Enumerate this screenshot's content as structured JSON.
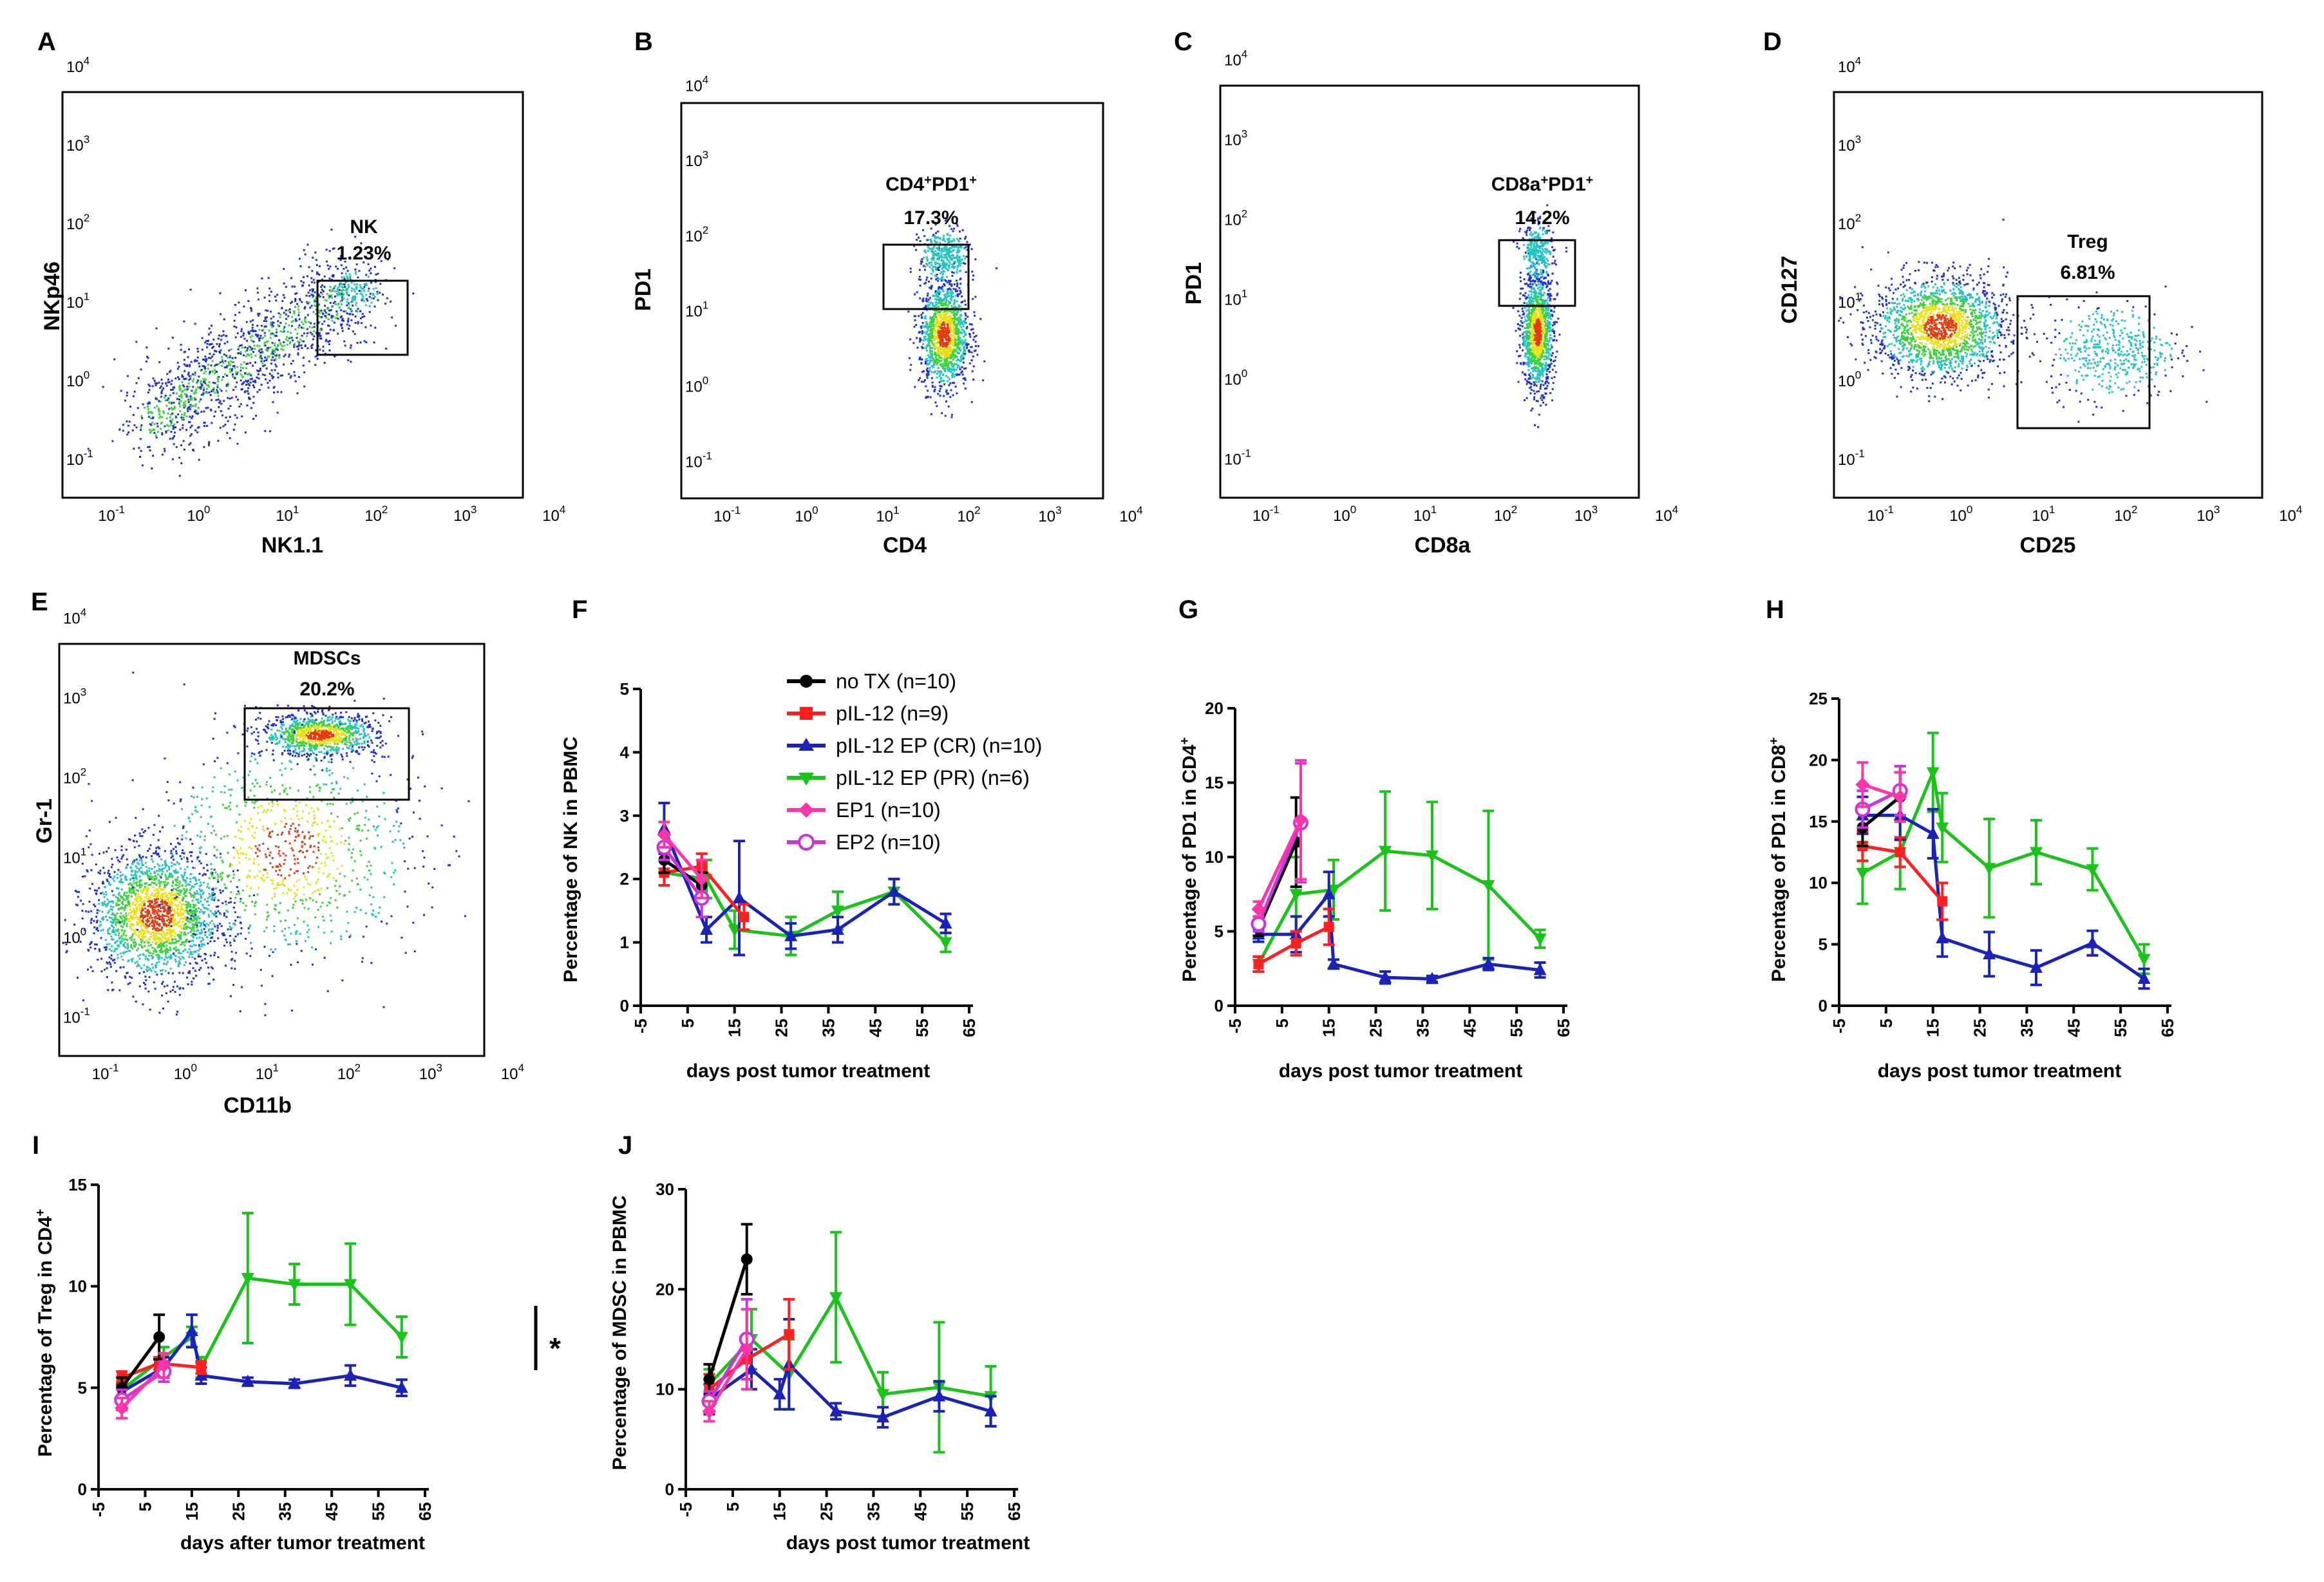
{
  "figure": {
    "panel_letters": [
      "A",
      "B",
      "C",
      "D",
      "E",
      "F",
      "G",
      "H",
      "I",
      "J"
    ],
    "tick_minor_label": "10",
    "colors": {
      "no_tx": "#000000",
      "pil12": "#ff1f1f",
      "cr": "#1b22b8",
      "pr": "#17c417",
      "ep1": "#ff33aa",
      "ep2": "#cc33dd",
      "dot_blue": "#1f2fd8",
      "dot_cyan": "#20c4c0",
      "dot_green": "#39d23a",
      "dot_yellow": "#e8e015",
      "dot_red": "#e33a10"
    }
  },
  "chart_data": [
    {
      "panel": "A",
      "type": "scatter",
      "xlabel": "NK1.1",
      "ylabel": "NKp46",
      "x_exponents": [
        "-1",
        "0",
        "1",
        "2",
        "3",
        "4"
      ],
      "y_exponents": [
        "-1",
        "0",
        "1",
        "2",
        "3",
        "4"
      ],
      "gate": {
        "label": "NK",
        "value": "1.23%",
        "x_range": [
          20,
          300
        ],
        "y_range": [
          4,
          40
        ]
      },
      "populations": [
        {
          "cx": -0.5,
          "cy": -0.5,
          "sx": 0.35,
          "sy": 0.35,
          "n": 1400,
          "shape": "diag"
        },
        {
          "cx": 1.8,
          "cy": 1.15,
          "sx": 0.15,
          "sy": 0.15,
          "n": 120
        }
      ]
    },
    {
      "panel": "B",
      "type": "scatter",
      "xlabel": "CD4",
      "ylabel": "PD1",
      "x_exponents": [
        "-1",
        "0",
        "1",
        "2",
        "3",
        "4"
      ],
      "y_exponents": [
        "-1",
        "0",
        "1",
        "2",
        "3",
        "4"
      ],
      "gate": {
        "label": "CD4",
        "label_sup": "+",
        "label2": "PD1",
        "label2_sup": "+",
        "value": "17.3%",
        "x_range": [
          20,
          150
        ],
        "y_range": [
          20,
          130
        ]
      },
      "populations": [
        {
          "cx": 1.75,
          "cy": 0.7,
          "sx": 0.15,
          "sy": 0.35,
          "n": 1300
        },
        {
          "cx": 1.75,
          "cy": 1.75,
          "sx": 0.15,
          "sy": 0.18,
          "n": 350
        }
      ]
    },
    {
      "panel": "C",
      "type": "scatter",
      "xlabel": "CD8a",
      "ylabel": "PD1",
      "x_exponents": [
        "-1",
        "0",
        "1",
        "2",
        "3",
        "4"
      ],
      "y_exponents": [
        "-1",
        "0",
        "1",
        "2",
        "3",
        "4"
      ],
      "gate": {
        "label": "CD8a",
        "label_sup": "+",
        "label2": "PD1",
        "label2_sup": "+",
        "value": "14.2%",
        "x_range": [
          100,
          500
        ],
        "y_range": [
          18,
          120
        ]
      },
      "populations": [
        {
          "cx": 2.45,
          "cy": 0.6,
          "sx": 0.1,
          "sy": 0.35,
          "n": 1200
        },
        {
          "cx": 2.45,
          "cy": 1.6,
          "sx": 0.1,
          "sy": 0.18,
          "n": 300
        }
      ]
    },
    {
      "panel": "D",
      "type": "scatter",
      "xlabel": "CD25",
      "ylabel": "CD127",
      "x_exponents": [
        "-1",
        "0",
        "1",
        "2",
        "3",
        "4"
      ],
      "y_exponents": [
        "-1",
        "0",
        "1",
        "2",
        "3",
        "4"
      ],
      "gate": {
        "label": "Treg",
        "value": "6.81%",
        "x_range": [
          10,
          500
        ],
        "y_range": [
          0.5,
          30
        ]
      },
      "populations": [
        {
          "cx": -0.2,
          "cy": 0.7,
          "sx": 0.4,
          "sy": 0.32,
          "n": 1800
        },
        {
          "cx": 1.9,
          "cy": 0.4,
          "sx": 0.4,
          "sy": 0.3,
          "n": 450
        }
      ]
    },
    {
      "panel": "E",
      "type": "scatter",
      "xlabel": "CD11b",
      "ylabel": "Gr-1",
      "x_exponents": [
        "-1",
        "0",
        "1",
        "2",
        "3",
        "4"
      ],
      "y_exponents": [
        "-1",
        "0",
        "1",
        "2",
        "3",
        "4"
      ],
      "gate": {
        "label": "MDSCs",
        "value": "20.2%",
        "x_range": [
          10,
          800
        ],
        "y_range": [
          50,
          1200
        ]
      },
      "populations": [
        {
          "cx": -0.3,
          "cy": 0.3,
          "sx": 0.4,
          "sy": 0.4,
          "n": 2000
        },
        {
          "cx": 1.7,
          "cy": 2.55,
          "sx": 0.35,
          "sy": 0.13,
          "n": 1000
        },
        {
          "cx": 1.3,
          "cy": 1.1,
          "sx": 0.8,
          "sy": 0.7,
          "n": 900
        }
      ]
    },
    {
      "panel": "F",
      "type": "line",
      "ylabel": "Percentage of NK in PBMC",
      "xlabel": "days post tumor treatment",
      "xlim": [
        -5,
        65
      ],
      "xticks": [
        -5,
        5,
        15,
        25,
        35,
        45,
        55,
        65
      ],
      "ylim": [
        0,
        5
      ],
      "yticks": [
        0,
        1,
        2,
        3,
        4,
        5
      ],
      "legend": [
        "no TX (n=10)",
        "pIL-12 (n=9)",
        "pIL-12 EP (CR) (n=10)",
        "pIL-12 EP (PR) (n=6)",
        "EP1 (n=10)",
        "EP2 (n=10)"
      ],
      "series": [
        {
          "name": "no TX (n=10)",
          "key": "no_tx",
          "x": [
            0,
            8
          ],
          "y": [
            2.3,
            1.9
          ],
          "err": [
            0.2,
            0.2
          ]
        },
        {
          "name": "pIL-12 (n=9)",
          "key": "pil12",
          "x": [
            0,
            8,
            17
          ],
          "y": [
            2.1,
            2.2,
            1.4
          ],
          "err": [
            0.2,
            0.2,
            0.2
          ]
        },
        {
          "name": "pIL-12 EP (CR) (n=10)",
          "key": "cr",
          "x": [
            0,
            9,
            16,
            27,
            37,
            49,
            60
          ],
          "y": [
            2.8,
            1.2,
            1.7,
            1.1,
            1.2,
            1.8,
            1.3
          ],
          "err": [
            0.4,
            0.2,
            0.9,
            0.2,
            0.2,
            0.2,
            0.15
          ]
        },
        {
          "name": "pIL-12 EP (PR) (n=6)",
          "key": "pr",
          "x": [
            0,
            9,
            15,
            27,
            37,
            49,
            60
          ],
          "y": [
            2.1,
            2.0,
            1.2,
            1.1,
            1.5,
            1.8,
            1.0
          ],
          "err": [
            0.2,
            0.3,
            0.3,
            0.3,
            0.3,
            0.2,
            0.15
          ]
        },
        {
          "name": "EP1 (n=10)",
          "key": "ep1",
          "x": [
            0,
            8
          ],
          "y": [
            2.7,
            2.0
          ],
          "err": [
            0.2,
            0.3
          ]
        },
        {
          "name": "EP2 (n=10)",
          "key": "ep2",
          "x": [
            0,
            8
          ],
          "y": [
            2.5,
            1.7
          ],
          "err": [
            0.2,
            0.3
          ]
        }
      ]
    },
    {
      "panel": "G",
      "type": "line",
      "ylabel": "Percentage of PD1 in CD4",
      "ylabel_sup": "+",
      "xlabel": "days post tumor treatment",
      "xlim": [
        -5,
        65
      ],
      "xticks": [
        -5,
        5,
        15,
        25,
        35,
        45,
        55,
        65
      ],
      "ylim": [
        0,
        20
      ],
      "yticks": [
        0,
        5,
        10,
        15,
        20
      ],
      "series": [
        {
          "name": "no TX (n=10)",
          "key": "no_tx",
          "x": [
            0,
            8
          ],
          "y": [
            5.2,
            11
          ],
          "err": [
            0.5,
            3
          ]
        },
        {
          "name": "pIL-12 (n=9)",
          "key": "pil12",
          "x": [
            0,
            8,
            15
          ],
          "y": [
            2.8,
            4.2,
            5.3
          ],
          "err": [
            0.5,
            0.8,
            1.2
          ]
        },
        {
          "name": "pIL-12 EP (CR) (n=10)",
          "key": "cr",
          "x": [
            0,
            8,
            15,
            16,
            27,
            37,
            49,
            60
          ],
          "y": [
            4.8,
            4.8,
            7.5,
            2.8,
            1.9,
            1.8,
            2.8,
            2.4
          ],
          "err": [
            0.5,
            1.2,
            1.5,
            0.3,
            0.4,
            0.2,
            0.4,
            0.5
          ]
        },
        {
          "name": "pIL-12 EP (PR) (n=6)",
          "key": "pr",
          "x": [
            0,
            8,
            16,
            27,
            37,
            49,
            60
          ],
          "y": [
            2.8,
            7.5,
            7.8,
            10.4,
            10.1,
            8.1,
            4.5
          ],
          "err": [
            0.5,
            2.5,
            2.0,
            4.0,
            3.6,
            5.0,
            0.6
          ]
        },
        {
          "name": "EP1 (n=10)",
          "key": "ep1",
          "x": [
            0,
            9
          ],
          "y": [
            6.5,
            12.5
          ],
          "err": [
            0.5,
            4
          ]
        },
        {
          "name": "EP2 (n=10)",
          "key": "ep2",
          "x": [
            0,
            9
          ],
          "y": [
            5.5,
            12.3
          ],
          "err": [
            0.5,
            4
          ]
        }
      ]
    },
    {
      "panel": "H",
      "type": "line",
      "ylabel": "Percentage of PD1 in CD8",
      "ylabel_sup": "+",
      "xlabel": "days post tumor treatment",
      "xlim": [
        -5,
        65
      ],
      "xticks": [
        -5,
        5,
        15,
        25,
        35,
        45,
        55,
        65
      ],
      "ylim": [
        0,
        25
      ],
      "yticks": [
        0,
        5,
        10,
        15,
        20,
        25
      ],
      "series": [
        {
          "name": "no TX (n=10)",
          "key": "no_tx",
          "x": [
            0,
            8
          ],
          "y": [
            14.5,
            17
          ],
          "err": [
            1.5,
            2
          ]
        },
        {
          "name": "pIL-12 (n=9)",
          "key": "pil12",
          "x": [
            0,
            8,
            17
          ],
          "y": [
            13,
            12.5,
            8.5
          ],
          "err": [
            1.2,
            1.2,
            1.5
          ]
        },
        {
          "name": "pIL-12 EP (CR) (n=10)",
          "key": "cr",
          "x": [
            0,
            8,
            15,
            17,
            27,
            37,
            49,
            60
          ],
          "y": [
            15.5,
            15.5,
            14,
            5.5,
            4.2,
            3.1,
            5.1,
            2.2
          ],
          "err": [
            1.5,
            2,
            2,
            1.5,
            1.8,
            1.4,
            1,
            0.8
          ]
        },
        {
          "name": "pIL-12 EP (PR) (n=6)",
          "key": "pr",
          "x": [
            0,
            8,
            15,
            17,
            27,
            37,
            49,
            60
          ],
          "y": [
            10.8,
            12.5,
            19,
            14.5,
            11.2,
            12.5,
            11.1,
            3.8
          ],
          "err": [
            2.5,
            3,
            3.2,
            2.8,
            4.0,
            2.6,
            1.7,
            1.2
          ]
        },
        {
          "name": "EP1 (n=10)",
          "key": "ep1",
          "x": [
            0,
            8
          ],
          "y": [
            18,
            17
          ],
          "err": [
            1.8,
            2
          ]
        },
        {
          "name": "EP2 (n=10)",
          "key": "ep2",
          "x": [
            0,
            8
          ],
          "y": [
            16,
            17.5
          ],
          "err": [
            1.5,
            2
          ]
        }
      ]
    },
    {
      "panel": "I",
      "type": "line",
      "ylabel": "Percentage of Treg in CD4",
      "ylabel_sup": "+",
      "xlabel": "days after tumor treatment",
      "xlim": [
        -5,
        65
      ],
      "xticks": [
        -5,
        5,
        15,
        25,
        35,
        45,
        55,
        65
      ],
      "ylim": [
        0,
        15
      ],
      "yticks": [
        0,
        5,
        10,
        15
      ],
      "annotation": "*",
      "series": [
        {
          "name": "no TX (n=10)",
          "key": "no_tx",
          "x": [
            0,
            8
          ],
          "y": [
            5.0,
            7.5
          ],
          "err": [
            0.5,
            1.1
          ]
        },
        {
          "name": "pIL-12 (n=9)",
          "key": "pil12",
          "x": [
            0,
            8,
            17
          ],
          "y": [
            5.5,
            6.2,
            6.0
          ],
          "err": [
            0.3,
            0.3,
            0.3
          ]
        },
        {
          "name": "pIL-12 EP (CR) (n=10)",
          "key": "cr",
          "x": [
            0,
            9,
            15,
            17,
            27,
            37,
            49,
            60
          ],
          "y": [
            4.8,
            6.0,
            7.8,
            5.6,
            5.3,
            5.2,
            5.6,
            5.0
          ],
          "err": [
            0.4,
            0.5,
            0.8,
            0.4,
            0.2,
            0.2,
            0.5,
            0.4
          ]
        },
        {
          "name": "pIL-12 EP (PR) (n=6)",
          "key": "pr",
          "x": [
            0,
            9,
            15,
            17,
            27,
            37,
            49,
            60
          ],
          "y": [
            4.9,
            6.5,
            7.5,
            6.0,
            10.4,
            10.1,
            10.1,
            7.5
          ],
          "err": [
            0.4,
            0.5,
            0.5,
            0.5,
            3.2,
            1.0,
            2.0,
            1.0
          ]
        },
        {
          "name": "EP1 (n=10)",
          "key": "ep1",
          "x": [
            0,
            9
          ],
          "y": [
            4.0,
            6.1
          ],
          "err": [
            0.5,
            0.6
          ]
        },
        {
          "name": "EP2 (n=10)",
          "key": "ep2",
          "x": [
            0,
            9
          ],
          "y": [
            4.4,
            5.8
          ],
          "err": [
            0.5,
            0.5
          ]
        }
      ]
    },
    {
      "panel": "J",
      "type": "line",
      "ylabel": "Percentage of  MDSC in PBMC",
      "xlabel": "days post tumor treatment",
      "xlim": [
        -5,
        65
      ],
      "xticks": [
        -5,
        5,
        15,
        25,
        35,
        45,
        55,
        65
      ],
      "ylim": [
        0,
        30
      ],
      "yticks": [
        0,
        10,
        20,
        30
      ],
      "series": [
        {
          "name": "no TX (n=10)",
          "key": "no_tx",
          "x": [
            0,
            8
          ],
          "y": [
            11,
            23
          ],
          "err": [
            1.5,
            3.5
          ]
        },
        {
          "name": "pIL-12 (n=9)",
          "key": "pil12",
          "x": [
            0,
            8,
            17
          ],
          "y": [
            10,
            13,
            15.5
          ],
          "err": [
            1.5,
            2,
            3.5
          ]
        },
        {
          "name": "pIL-12 EP (CR) (n=10)",
          "key": "cr",
          "x": [
            0,
            9,
            15,
            17,
            27,
            37,
            49,
            60
          ],
          "y": [
            9,
            12,
            9.5,
            12.5,
            7.8,
            7.2,
            9.3,
            7.8
          ],
          "err": [
            1.5,
            2,
            1.5,
            4.5,
            0.8,
            1,
            1.5,
            1.5
          ]
        },
        {
          "name": "pIL-12 EP (PR) (n=6)",
          "key": "pr",
          "x": [
            0,
            9,
            17,
            27,
            37,
            49,
            60
          ],
          "y": [
            10.5,
            15,
            11.5,
            19.2,
            9.5,
            10.2,
            9.3
          ],
          "err": [
            1.5,
            3,
            3.5,
            6.5,
            2.2,
            6.5,
            3
          ]
        },
        {
          "name": "EP1 (n=10)",
          "key": "ep1",
          "x": [
            0,
            8
          ],
          "y": [
            7.8,
            14
          ],
          "err": [
            1,
            4
          ]
        },
        {
          "name": "EP2 (n=10)",
          "key": "ep2",
          "x": [
            0,
            8
          ],
          "y": [
            8.8,
            15
          ],
          "err": [
            1,
            4
          ]
        }
      ]
    }
  ]
}
